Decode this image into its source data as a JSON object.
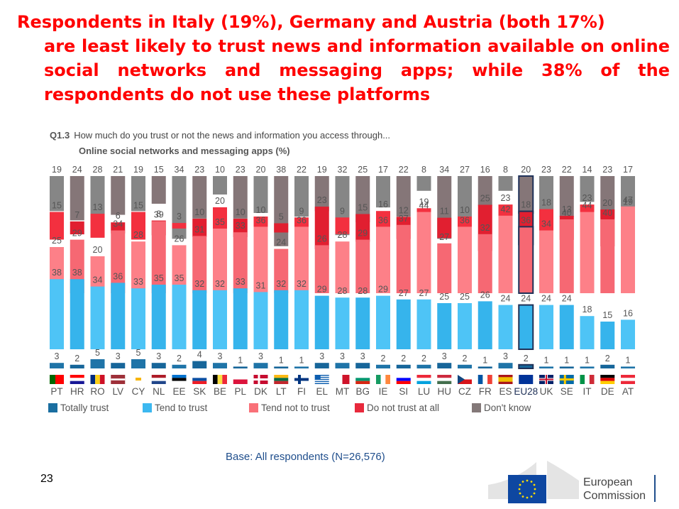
{
  "headline": {
    "line1": "Respondents in Italy (19%), Germany and Austria (both 17%)",
    "rest": "are least likely to trust news and information available on online social networks and messaging apps; while 38% of the respondents do not use these platforms"
  },
  "question": {
    "code": "Q1.3",
    "text": "How much do you trust or not the news and information you access through...",
    "subtitle": "Online social networks and messaging apps (%)"
  },
  "footer": {
    "base": "Base: All respondents (N=26,576)",
    "page_number": "23",
    "logo_line1": "European",
    "logo_line2": "Commission"
  },
  "colors": {
    "totally_trust": "#1a6ea0",
    "tend_to_trust": "#3cb8f0",
    "tend_not_to_trust": "#f97078",
    "do_not_trust_at_all": "#e8293c",
    "dont_know": "#837878",
    "highlight_border": "#1f3158",
    "label": "#555555"
  },
  "chart_data": {
    "type": "bar",
    "title": "Online social networks and messaging apps (%)",
    "xlabel": "",
    "ylabel": "%",
    "highlight": "EU28",
    "categories": [
      "PT",
      "HR",
      "RO",
      "LV",
      "CY",
      "NL",
      "EE",
      "SK",
      "BE",
      "PL",
      "DK",
      "LT",
      "FI",
      "EL",
      "MT",
      "BG",
      "IE",
      "SI",
      "LU",
      "HU",
      "CZ",
      "FR",
      "ES",
      "EU28",
      "UK",
      "SE",
      "IT",
      "DE",
      "AT"
    ],
    "series": [
      {
        "name": "Don't know",
        "key": "dont_know",
        "values": [
          19,
          24,
          28,
          21,
          19,
          15,
          34,
          23,
          10,
          23,
          20,
          38,
          22,
          19,
          32,
          25,
          17,
          22,
          8,
          34,
          27,
          16,
          8,
          20,
          23,
          22,
          14,
          23,
          17
        ]
      },
      {
        "name": "Do not trust at all",
        "key": "do_not_trust_at_all",
        "values": [
          15,
          7,
          13,
          6,
          15,
          8,
          3,
          10,
          20,
          10,
          10,
          5,
          9,
          23,
          9,
          15,
          16,
          12,
          19,
          11,
          10,
          25,
          23,
          18,
          18,
          13,
          23,
          20,
          19
        ]
      },
      {
        "name": "Tend not to trust",
        "key": "tend_not_to_trust",
        "values": [
          25,
          29,
          20,
          34,
          28,
          39,
          26,
          31,
          35,
          33,
          36,
          24,
          36,
          26,
          28,
          29,
          36,
          37,
          44,
          27,
          36,
          32,
          42,
          36,
          34,
          40,
          44,
          40,
          47
        ]
      },
      {
        "name": "Tend to trust",
        "key": "tend_to_trust",
        "values": [
          38,
          38,
          34,
          36,
          33,
          35,
          35,
          32,
          32,
          33,
          31,
          32,
          32,
          29,
          28,
          28,
          29,
          27,
          27,
          25,
          25,
          26,
          24,
          24,
          24,
          24,
          18,
          15,
          16
        ]
      },
      {
        "name": "Totally trust",
        "key": "totally_trust",
        "values": [
          3,
          2,
          5,
          3,
          5,
          3,
          2,
          4,
          3,
          1,
          3,
          1,
          1,
          3,
          3,
          3,
          2,
          2,
          2,
          3,
          2,
          1,
          3,
          2,
          1,
          1,
          1,
          2,
          1
        ]
      }
    ],
    "legend": [
      "Totally trust",
      "Tend to trust",
      "Tend not to trust",
      "Do not trust at all",
      "Don't know"
    ],
    "legend_position": "bottom"
  }
}
